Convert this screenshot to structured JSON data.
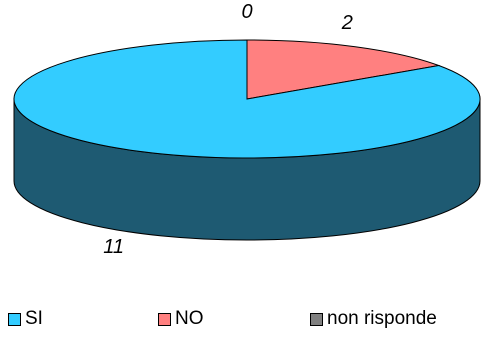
{
  "chart_data": {
    "type": "pie",
    "style": "3d",
    "categories": [
      "SI",
      "NO",
      "non risponde"
    ],
    "values": [
      11,
      2,
      0
    ],
    "colors": [
      "#33ccff",
      "#ff8080",
      "#808080"
    ],
    "side_colors": [
      "#1e5a72",
      "#8a4444",
      "#444444"
    ],
    "data_labels": [
      "11",
      "2",
      "0"
    ],
    "legend_position": "bottom",
    "title": ""
  }
}
